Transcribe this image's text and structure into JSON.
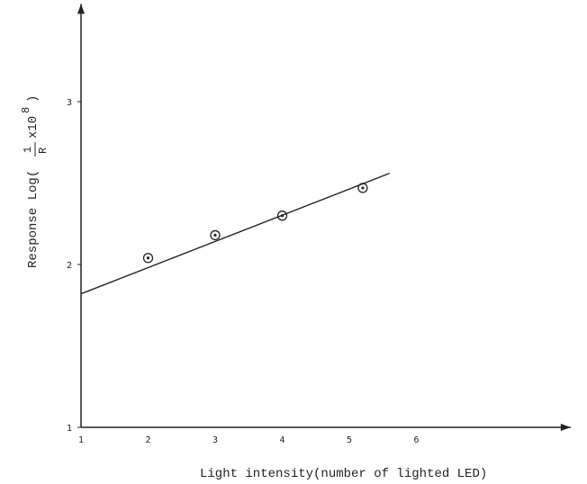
{
  "chart_data": {
    "type": "scatter",
    "title": "",
    "xlabel": "Light intensity(number of lighted LED)",
    "ylabel": {
      "prefix": "Response Log(",
      "numerator": "1",
      "denominator": "R",
      "suffix": "x10",
      "exponent": "8",
      "close": ")"
    },
    "x_ticks": [
      "1",
      "2",
      "3",
      "4",
      "5",
      "6"
    ],
    "y_ticks": [
      "1",
      "2",
      "3"
    ],
    "xlim": [
      1,
      8.3
    ],
    "ylim": [
      1,
      3.6
    ],
    "grid": false,
    "legend": "none",
    "points": [
      {
        "x": 2,
        "y": 2.04
      },
      {
        "x": 3,
        "y": 2.18
      },
      {
        "x": 4,
        "y": 2.3
      },
      {
        "x": 5.2,
        "y": 2.47
      }
    ],
    "fit_line": {
      "x": [
        1,
        5.6
      ],
      "y": [
        1.82,
        2.56
      ]
    }
  }
}
